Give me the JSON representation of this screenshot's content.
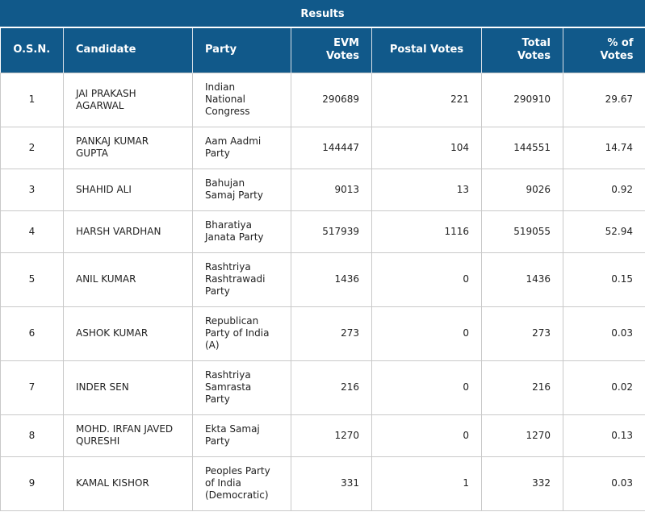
{
  "title": "Results",
  "headers": {
    "osn": "O.S.N.",
    "candidate": "Candidate",
    "party": "Party",
    "evm_line1": "EVM",
    "evm_line2": "Votes",
    "postal": "Postal Votes",
    "total_line1": "Total",
    "total_line2": "Votes",
    "pct_line1": "% of",
    "pct_line2": "Votes"
  },
  "rows": [
    {
      "osn": "1",
      "candidate": [
        "JAI PRAKASH",
        "AGARWAL"
      ],
      "party": [
        "Indian",
        "National",
        "Congress"
      ],
      "evm": "290689",
      "postal": "221",
      "total": "290910",
      "pct": "29.67"
    },
    {
      "osn": "2",
      "candidate": [
        "PANKAJ KUMAR",
        "GUPTA"
      ],
      "party": [
        "Aam Aadmi",
        "Party"
      ],
      "evm": "144447",
      "postal": "104",
      "total": "144551",
      "pct": "14.74"
    },
    {
      "osn": "3",
      "candidate": [
        "SHAHID ALI"
      ],
      "party": [
        "Bahujan",
        "Samaj Party"
      ],
      "evm": "9013",
      "postal": "13",
      "total": "9026",
      "pct": "0.92"
    },
    {
      "osn": "4",
      "candidate": [
        "HARSH VARDHAN"
      ],
      "party": [
        "Bharatiya",
        "Janata Party"
      ],
      "evm": "517939",
      "postal": "1116",
      "total": "519055",
      "pct": "52.94"
    },
    {
      "osn": "5",
      "candidate": [
        "ANIL KUMAR"
      ],
      "party": [
        "Rashtriya",
        "Rashtrawadi",
        "Party"
      ],
      "evm": "1436",
      "postal": "0",
      "total": "1436",
      "pct": "0.15"
    },
    {
      "osn": "6",
      "candidate": [
        "ASHOK KUMAR"
      ],
      "party": [
        "Republican",
        "Party of India",
        "(A)"
      ],
      "evm": "273",
      "postal": "0",
      "total": "273",
      "pct": "0.03"
    },
    {
      "osn": "7",
      "candidate": [
        "INDER SEN"
      ],
      "party": [
        "Rashtriya",
        "Samrasta",
        "Party"
      ],
      "evm": "216",
      "postal": "0",
      "total": "216",
      "pct": "0.02"
    },
    {
      "osn": "8",
      "candidate": [
        "MOHD. IRFAN JAVED",
        "QURESHI"
      ],
      "party": [
        "Ekta Samaj",
        "Party"
      ],
      "evm": "1270",
      "postal": "0",
      "total": "1270",
      "pct": "0.13"
    },
    {
      "osn": "9",
      "candidate": [
        "KAMAL KISHOR"
      ],
      "party": [
        "Peoples Party",
        "of India",
        "(Democratic)"
      ],
      "evm": "331",
      "postal": "1",
      "total": "332",
      "pct": "0.03"
    }
  ]
}
